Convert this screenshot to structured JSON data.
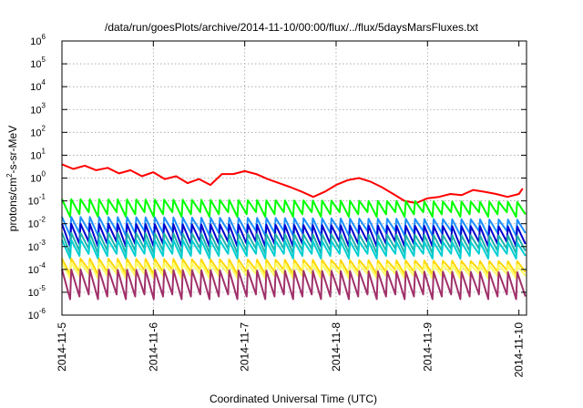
{
  "chart_data": {
    "type": "line",
    "title": "/data/run/goesPlots/archive/2014-11-10/00:00/flux/../flux/5daysMarsFluxes.txt",
    "xlabel": "Coordinated Universal Time (UTC)",
    "ylabel": "protons/cm2-s-sr-MeV",
    "yscale": "log",
    "ylim": [
      1e-06,
      1000000.0
    ],
    "xlim": [
      "2014-11-05",
      "2014-11-10"
    ],
    "x_ticks": [
      "2014-11-5",
      "2014-11-6",
      "2014-11-7",
      "2014-11-8",
      "2014-11-9",
      "2014-11-10"
    ],
    "y_ticks": [
      {
        "base": "10",
        "exp": "-6"
      },
      {
        "base": "10",
        "exp": "-5"
      },
      {
        "base": "10",
        "exp": "-4"
      },
      {
        "base": "10",
        "exp": "-3"
      },
      {
        "base": "10",
        "exp": "-2"
      },
      {
        "base": "10",
        "exp": "-1"
      },
      {
        "base": "10",
        "exp": "0"
      },
      {
        "base": "10",
        "exp": "1"
      },
      {
        "base": "10",
        "exp": "2"
      },
      {
        "base": "10",
        "exp": "3"
      },
      {
        "base": "10",
        "exp": "4"
      },
      {
        "base": "10",
        "exp": "5"
      },
      {
        "base": "10",
        "exp": "6"
      }
    ],
    "grid": true,
    "series": [
      {
        "color": "#ff0000",
        "x": [
          "2014-11-05 00:00",
          "2014-11-05 03:00",
          "2014-11-05 06:00",
          "2014-11-05 09:00",
          "2014-11-05 12:00",
          "2014-11-05 15:00",
          "2014-11-05 18:00",
          "2014-11-05 21:00",
          "2014-11-06 00:00",
          "2014-11-06 03:00",
          "2014-11-06 06:00",
          "2014-11-06 09:00",
          "2014-11-06 12:00",
          "2014-11-06 15:00",
          "2014-11-06 18:00",
          "2014-11-06 21:00",
          "2014-11-07 00:00",
          "2014-11-07 03:00",
          "2014-11-07 06:00",
          "2014-11-07 09:00",
          "2014-11-07 12:00",
          "2014-11-07 15:00",
          "2014-11-07 18:00",
          "2014-11-07 21:00",
          "2014-11-08 00:00",
          "2014-11-08 03:00",
          "2014-11-08 06:00",
          "2014-11-08 09:00",
          "2014-11-08 12:00",
          "2014-11-08 15:00",
          "2014-11-08 18:00",
          "2014-11-08 21:00",
          "2014-11-09 00:00",
          "2014-11-09 03:00",
          "2014-11-09 06:00",
          "2014-11-09 09:00",
          "2014-11-09 12:00",
          "2014-11-09 15:00",
          "2014-11-09 18:00",
          "2014-11-09 21:00",
          "2014-11-10 00:00",
          "2014-11-10 01:00"
        ],
        "y": [
          4,
          2.5,
          3.5,
          2.2,
          2.8,
          1.6,
          2.2,
          1.2,
          1.8,
          0.9,
          1.2,
          0.6,
          0.9,
          0.5,
          1.5,
          1.5,
          2.0,
          1.5,
          0.9,
          0.6,
          0.4,
          0.25,
          0.15,
          0.25,
          0.5,
          0.8,
          1.0,
          0.7,
          0.4,
          0.2,
          0.1,
          0.08,
          0.13,
          0.15,
          0.2,
          0.18,
          0.3,
          0.25,
          0.2,
          0.15,
          0.2,
          0.35
        ]
      },
      {
        "color": "#00ff00",
        "y_range": [
          0.02,
          0.12
        ]
      },
      {
        "color": "#1e90ff",
        "y_range": [
          0.003,
          0.02
        ]
      },
      {
        "color": "#0000cd",
        "y_range": [
          0.001,
          0.01
        ]
      },
      {
        "color": "#20b2aa",
        "y_range": [
          0.0005,
          0.004
        ]
      },
      {
        "color": "#00ced1",
        "y_range": [
          0.0003,
          0.002
        ]
      },
      {
        "color": "#ffd700",
        "y_range": [
          6e-05,
          0.0003
        ]
      },
      {
        "color": "#ffff66",
        "y_range": [
          4e-05,
          0.0002
        ]
      },
      {
        "color": "#a0306a",
        "y_range": [
          5e-06,
          0.0001
        ]
      }
    ]
  }
}
